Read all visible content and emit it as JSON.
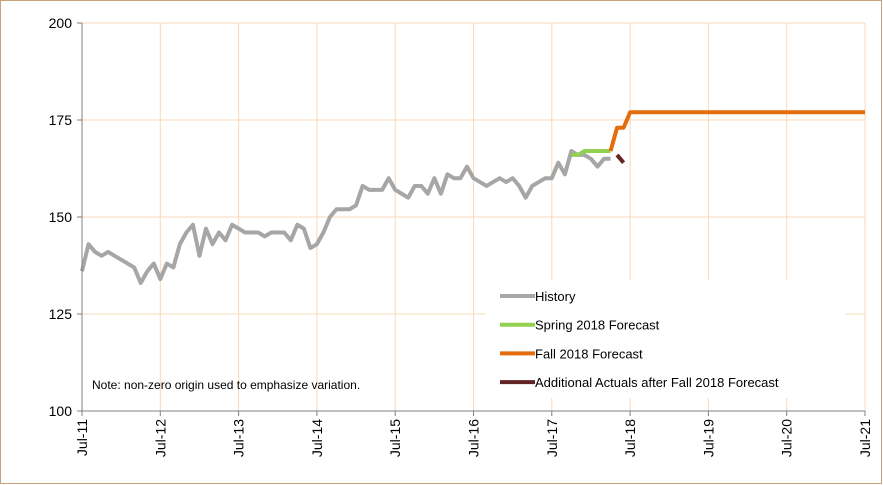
{
  "chart_data": {
    "type": "line",
    "categories": [
      "Jul-11",
      null,
      null,
      null,
      null,
      null,
      null,
      null,
      null,
      null,
      null,
      null,
      "Jul-12",
      null,
      null,
      null,
      null,
      null,
      null,
      null,
      null,
      null,
      null,
      null,
      "Jul-13",
      null,
      null,
      null,
      null,
      null,
      null,
      null,
      null,
      null,
      null,
      null,
      "Jul-14",
      null,
      null,
      null,
      null,
      null,
      null,
      null,
      null,
      null,
      null,
      null,
      "Jul-15",
      null,
      null,
      null,
      null,
      null,
      null,
      null,
      null,
      null,
      null,
      null,
      "Jul-16",
      null,
      null,
      null,
      null,
      null,
      null,
      null,
      null,
      null,
      null,
      null,
      "Jul-17",
      null,
      null,
      null,
      null,
      null,
      null,
      null,
      null,
      null,
      null,
      null,
      "Jul-18",
      null,
      null,
      null,
      null,
      null,
      null,
      null,
      null,
      null,
      null,
      null,
      "Jul-19",
      null,
      null,
      null,
      null,
      null,
      null,
      null,
      null,
      null,
      null,
      null,
      "Jul-20",
      null,
      null,
      null,
      null,
      null,
      null,
      null,
      null,
      null,
      null,
      null,
      "Jul-21"
    ],
    "series": [
      {
        "name": "History",
        "color": "#a6a6a6",
        "values": [
          136,
          143,
          141,
          140,
          141,
          140,
          139,
          138,
          137,
          133,
          136,
          138,
          134,
          138,
          137,
          143,
          146,
          148,
          140,
          147,
          143,
          146,
          144,
          148,
          147,
          146,
          146,
          146,
          145,
          146,
          146,
          146,
          144,
          148,
          147,
          142,
          143,
          146,
          150,
          152,
          152,
          152,
          153,
          158,
          157,
          157,
          157,
          160,
          157,
          156,
          155,
          158,
          158,
          156,
          160,
          156,
          161,
          160,
          160,
          163,
          160,
          159,
          158,
          159,
          160,
          159,
          160,
          158,
          155,
          158,
          159,
          160,
          160,
          164,
          161,
          167,
          166,
          166,
          165,
          163,
          165,
          165,
          null,
          null,
          null,
          null,
          null,
          null,
          null,
          null,
          null,
          null,
          null,
          null,
          null,
          null,
          null,
          null,
          null,
          null,
          null,
          null,
          null,
          null,
          null,
          null,
          null,
          null,
          null,
          null,
          null,
          null,
          null,
          null,
          null,
          null,
          null,
          null,
          null,
          null,
          null
        ]
      },
      {
        "name": "Spring 2018 Forecast",
        "color": "#92d050",
        "values": [
          null,
          null,
          null,
          null,
          null,
          null,
          null,
          null,
          null,
          null,
          null,
          null,
          null,
          null,
          null,
          null,
          null,
          null,
          null,
          null,
          null,
          null,
          null,
          null,
          null,
          null,
          null,
          null,
          null,
          null,
          null,
          null,
          null,
          null,
          null,
          null,
          null,
          null,
          null,
          null,
          null,
          null,
          null,
          null,
          null,
          null,
          null,
          null,
          null,
          null,
          null,
          null,
          null,
          null,
          null,
          null,
          null,
          null,
          null,
          null,
          null,
          null,
          null,
          null,
          null,
          null,
          null,
          null,
          null,
          null,
          null,
          null,
          null,
          null,
          null,
          166,
          166,
          167,
          167,
          167,
          167,
          167,
          null,
          null,
          null,
          null,
          null,
          null,
          null,
          null,
          null,
          null,
          null,
          null,
          null,
          null,
          null,
          null,
          null,
          null,
          null,
          null,
          null,
          null,
          null,
          null,
          null,
          null,
          null,
          null,
          null,
          null,
          null,
          null,
          null,
          null,
          null,
          null,
          null,
          null,
          null
        ]
      },
      {
        "name": "Fall 2018 Forecast",
        "color": "#e46c0a",
        "values": [
          null,
          null,
          null,
          null,
          null,
          null,
          null,
          null,
          null,
          null,
          null,
          null,
          null,
          null,
          null,
          null,
          null,
          null,
          null,
          null,
          null,
          null,
          null,
          null,
          null,
          null,
          null,
          null,
          null,
          null,
          null,
          null,
          null,
          null,
          null,
          null,
          null,
          null,
          null,
          null,
          null,
          null,
          null,
          null,
          null,
          null,
          null,
          null,
          null,
          null,
          null,
          null,
          null,
          null,
          null,
          null,
          null,
          null,
          null,
          null,
          null,
          null,
          null,
          null,
          null,
          null,
          null,
          null,
          null,
          null,
          null,
          null,
          null,
          null,
          null,
          null,
          null,
          null,
          null,
          null,
          null,
          167,
          173,
          173,
          177,
          177,
          177,
          177,
          177,
          177,
          177,
          177,
          177,
          177,
          177,
          177,
          177,
          177,
          177,
          177,
          177,
          177,
          177,
          177,
          177,
          177,
          177,
          177,
          177,
          177,
          177,
          177,
          177,
          177,
          177,
          177,
          177,
          177,
          177,
          177,
          177
        ]
      },
      {
        "name": "Additional Actuals after Fall 2018 Forecast",
        "color": "#632523",
        "values": [
          null,
          null,
          null,
          null,
          null,
          null,
          null,
          null,
          null,
          null,
          null,
          null,
          null,
          null,
          null,
          null,
          null,
          null,
          null,
          null,
          null,
          null,
          null,
          null,
          null,
          null,
          null,
          null,
          null,
          null,
          null,
          null,
          null,
          null,
          null,
          null,
          null,
          null,
          null,
          null,
          null,
          null,
          null,
          null,
          null,
          null,
          null,
          null,
          null,
          null,
          null,
          null,
          null,
          null,
          null,
          null,
          null,
          null,
          null,
          null,
          null,
          null,
          null,
          null,
          null,
          null,
          null,
          null,
          null,
          null,
          null,
          null,
          null,
          null,
          null,
          null,
          null,
          null,
          null,
          null,
          null,
          null,
          166,
          164,
          null,
          null,
          null,
          null,
          null,
          null,
          null,
          null,
          null,
          null,
          null,
          null,
          null,
          null,
          null,
          null,
          null,
          null,
          null,
          null,
          null,
          null,
          null,
          null,
          null,
          null,
          null,
          null,
          null,
          null,
          null,
          null,
          null,
          null,
          null,
          null,
          null
        ]
      }
    ],
    "ylim": [
      100,
      200
    ],
    "yticks": [
      100,
      125,
      150,
      175,
      200
    ],
    "grid": true,
    "legend": "bottom-right",
    "annotation": "Note: non-zero origin used to emphasize variation."
  }
}
